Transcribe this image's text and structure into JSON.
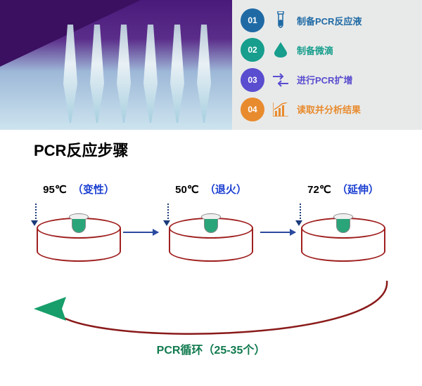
{
  "steps_panel": {
    "background": "#e8eae9",
    "items": [
      {
        "num": "01",
        "num_bg": "#1f6aa5",
        "icon": "tube",
        "icon_color": "#1f6aa5",
        "label": "制备PCR反应液",
        "label_color": "#1f6aa5"
      },
      {
        "num": "02",
        "num_bg": "#179e8d",
        "icon": "droplet",
        "icon_color": "#179e8d",
        "label": "制备微滴",
        "label_color": "#179e8d"
      },
      {
        "num": "03",
        "num_bg": "#5a4dcf",
        "icon": "transfer",
        "icon_color": "#5a4dcf",
        "label": "进行PCR扩增",
        "label_color": "#5a4dcf"
      },
      {
        "num": "04",
        "num_bg": "#e88b2e",
        "icon": "chart",
        "icon_color": "#e88b2e",
        "label": "读取并分析结果",
        "label_color": "#e88b2e"
      }
    ]
  },
  "section_title": "PCR反应步骤",
  "stages": [
    {
      "temp": "95℃",
      "name": "（变性）",
      "name_color": "#1b3fd1",
      "tube_fill": "#2aa57a"
    },
    {
      "temp": "50℃",
      "name": "（退火）",
      "name_color": "#1b3fd1",
      "tube_fill": "#2aa57a"
    },
    {
      "temp": "72℃",
      "name": "（延伸）",
      "name_color": "#1b3fd1",
      "tube_fill": "#2aa57a"
    }
  ],
  "flow_arrow_color": "#2a4aa0",
  "cycle": {
    "label": "PCR循环（25-35个）",
    "label_color": "#107a4e",
    "curve_color": "#8a1a1a",
    "head_color": "#179e6a"
  },
  "cylinder": {
    "stroke": "#a02020",
    "dot_color": "#1b3a7a"
  }
}
